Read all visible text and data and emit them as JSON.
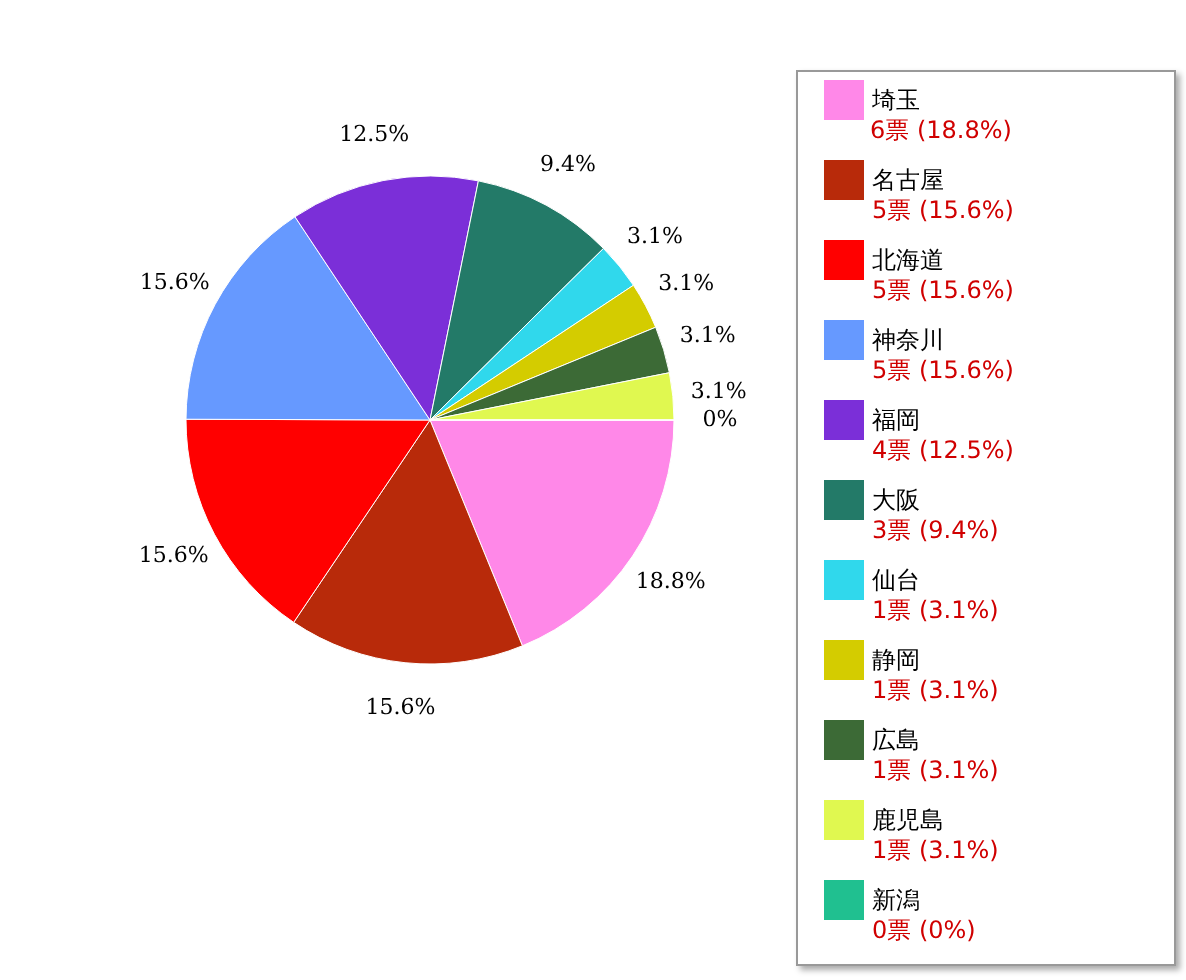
{
  "chart_data": {
    "type": "pie",
    "categories": [
      "埼玉",
      "名古屋",
      "北海道",
      "神奈川",
      "福岡",
      "大阪",
      "仙台",
      "静岡",
      "広島",
      "鹿児島",
      "新潟"
    ],
    "values": [
      18.8,
      15.6,
      15.6,
      15.6,
      12.5,
      9.4,
      3.1,
      3.1,
      3.1,
      3.1,
      0
    ],
    "colors": [
      "#ff88e8",
      "#b82a0a",
      "#ff0000",
      "#6699ff",
      "#7b2fd8",
      "#237a68",
      "#30d8ec",
      "#d4cc00",
      "#3c6a36",
      "#e0f850",
      "#20c090"
    ],
    "value_labels": [
      "18.8%",
      "15.6%",
      "15.6%",
      "15.6%",
      "12.5%",
      "9.4%",
      "3.1%",
      "3.1%",
      "3.1%",
      "3.1%",
      "0%"
    ],
    "annotations": [
      "6票 (18.8%)",
      "5票 (15.6%)",
      "5票 (15.6%)",
      "5票 (15.6%)",
      "4票 (12.5%)",
      "3票 (9.4%)",
      "1票 (3.1%)",
      "1票 (3.1%)",
      "1票 (3.1%)",
      "1票 (3.1%)",
      "0票 (0%)"
    ],
    "legend": "right"
  }
}
